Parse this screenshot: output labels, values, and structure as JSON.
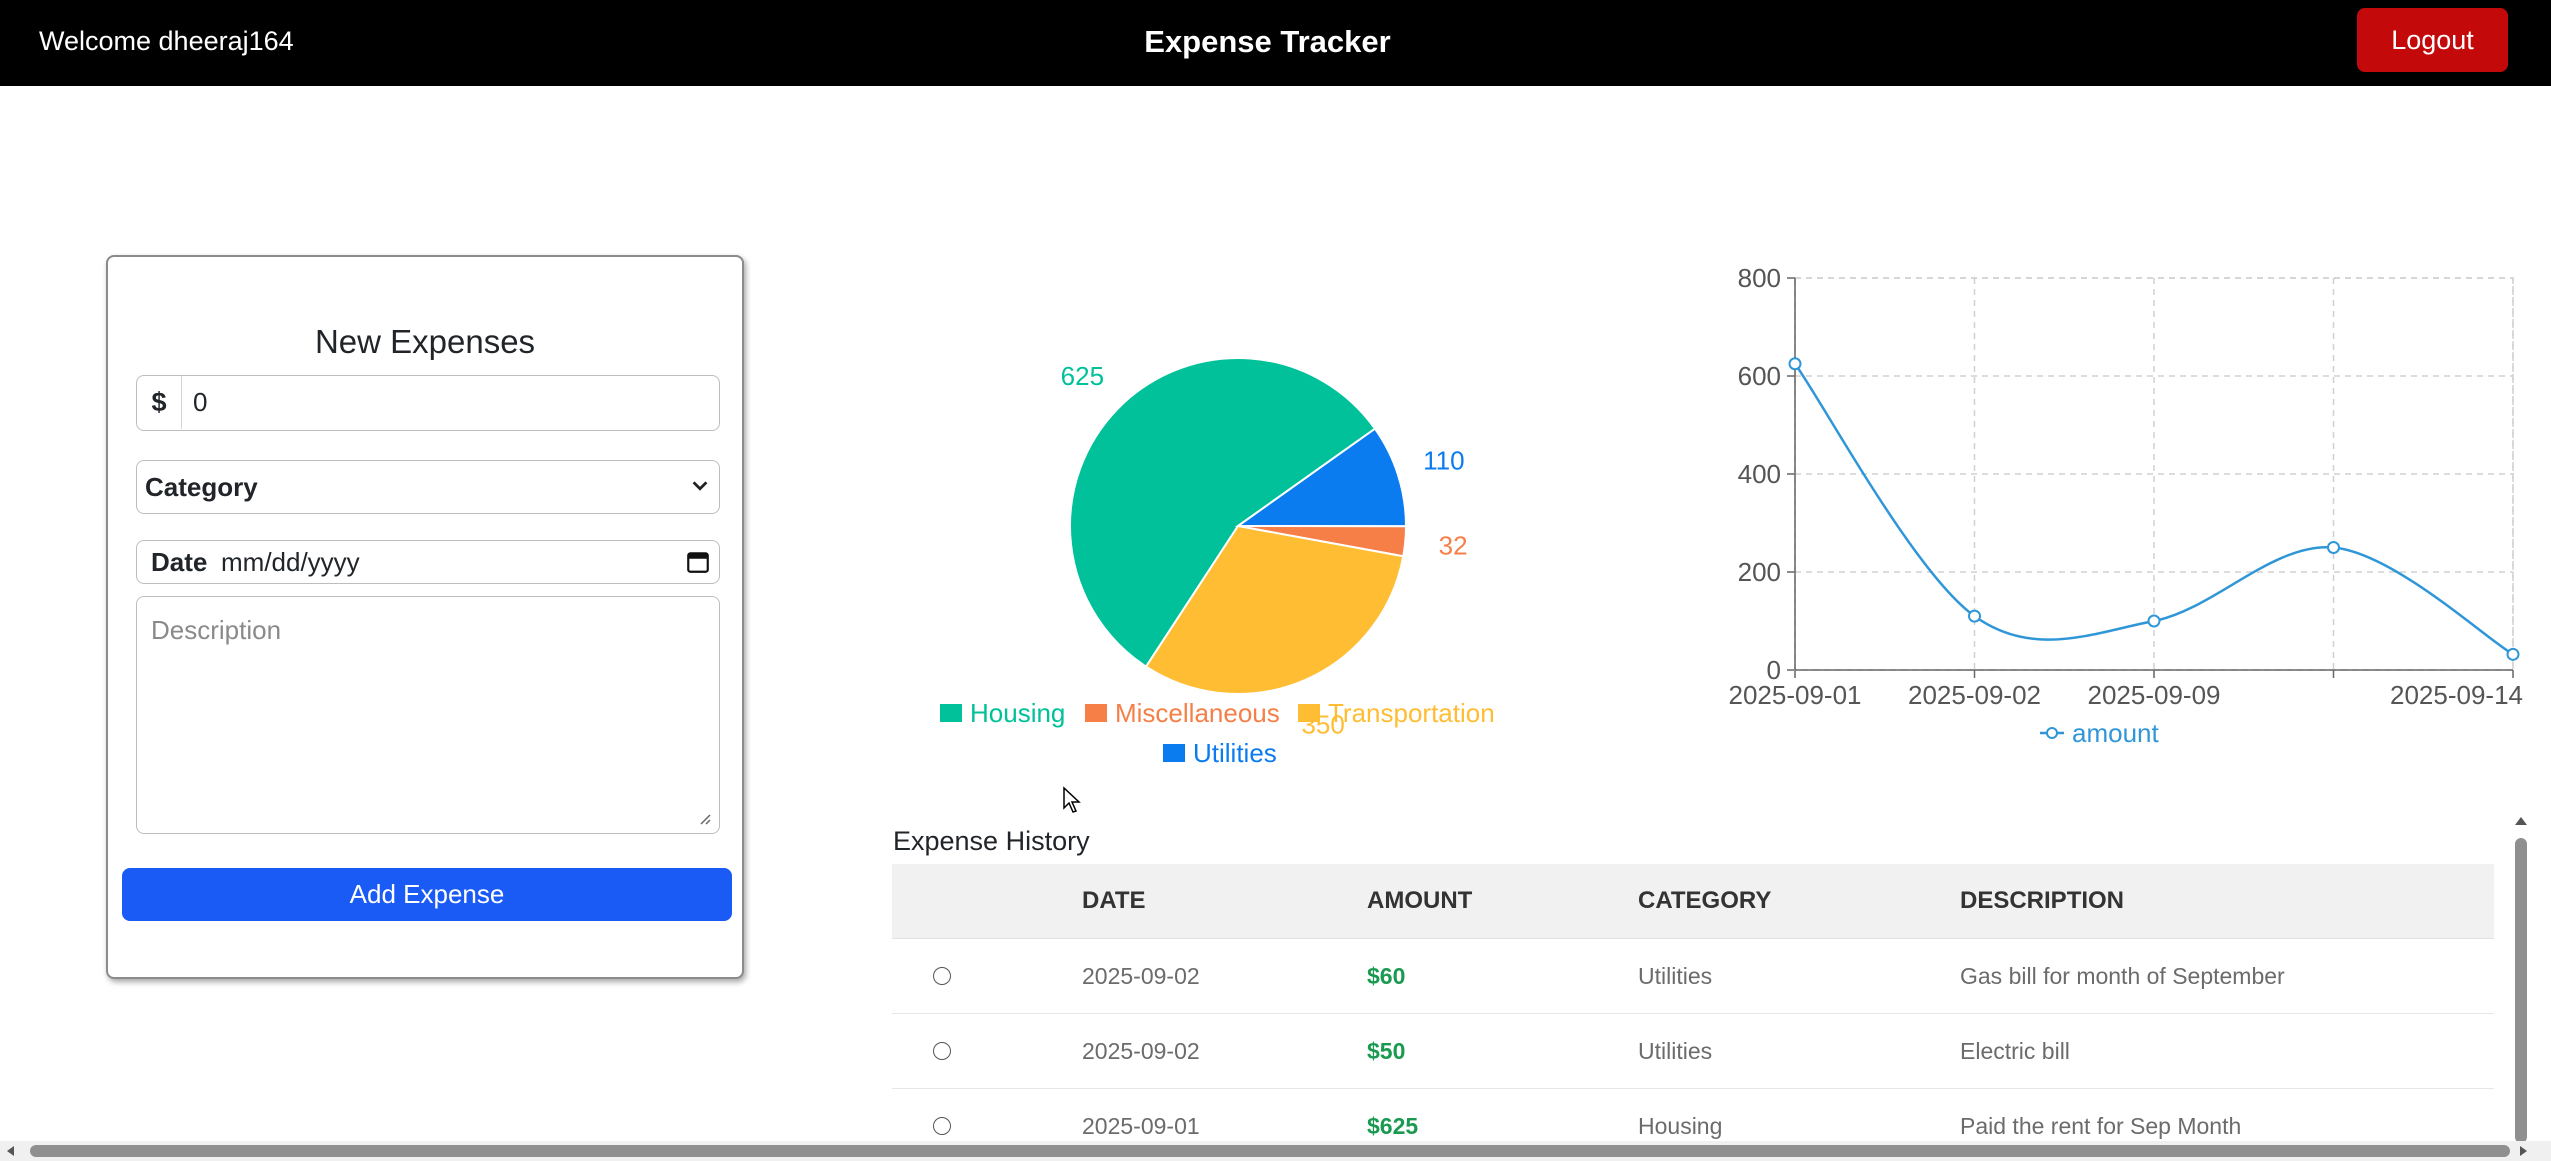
{
  "navbar": {
    "welcome": "Welcome dheeraj164",
    "title": "Expense Tracker",
    "logout_label": "Logout"
  },
  "form": {
    "title": "New Expenses",
    "currency_symbol": "$",
    "amount_value": "0",
    "category_selected": "Category",
    "date_label": "Date",
    "date_placeholder": "mm/dd/yyyy",
    "description_placeholder": "Description",
    "add_label": "Add Expense",
    "icons": {
      "chevron": "chevron-down-icon",
      "calendar": "calendar-icon"
    }
  },
  "chart_data": [
    {
      "type": "pie",
      "slices": [
        {
          "name": "Housing",
          "value": 625,
          "color": "#00c19a"
        },
        {
          "name": "Utilities",
          "value": 110,
          "color": "#0a7cf0"
        },
        {
          "name": "Miscellaneous",
          "value": 32,
          "color": "#f67f48"
        },
        {
          "name": "Transportation",
          "value": 350,
          "color": "#ffbd33"
        }
      ],
      "data_labels": [
        "625",
        "110",
        "32",
        "350"
      ],
      "legend": [
        "Housing",
        "Miscellaneous",
        "Transportation",
        "Utilities"
      ],
      "legend_placement": "bottom"
    },
    {
      "type": "line",
      "series": [
        {
          "name": "amount",
          "color": "#2f96d8"
        }
      ],
      "x_labels": [
        "2025-09-01",
        "2025-09-02",
        "2025-09-09",
        "2025-09-14"
      ],
      "points": [
        {
          "x": "2025-09-01",
          "y": 625
        },
        {
          "x": "2025-09-02",
          "y": 110
        },
        {
          "x": "2025-09-09",
          "y": 100
        },
        {
          "x": "",
          "y": 250
        },
        {
          "x": "2025-09-14",
          "y": 32
        }
      ],
      "y_ticks": [
        0,
        200,
        400,
        600,
        800
      ],
      "ylim": [
        0,
        800
      ],
      "grid": true,
      "legend_placement": "bottom"
    }
  ],
  "history": {
    "title": "Expense History",
    "columns": [
      "DATE",
      "AMOUNT",
      "CATEGORY",
      "DESCRIPTION"
    ],
    "rows": [
      {
        "date": "2025-09-02",
        "amount": "$60",
        "category": "Utilities",
        "description": "Gas bill for month of September"
      },
      {
        "date": "2025-09-02",
        "amount": "$50",
        "category": "Utilities",
        "description": "Electric bill"
      },
      {
        "date": "2025-09-01",
        "amount": "$625",
        "category": "Housing",
        "description": "Paid the rent for Sep Month"
      }
    ]
  }
}
